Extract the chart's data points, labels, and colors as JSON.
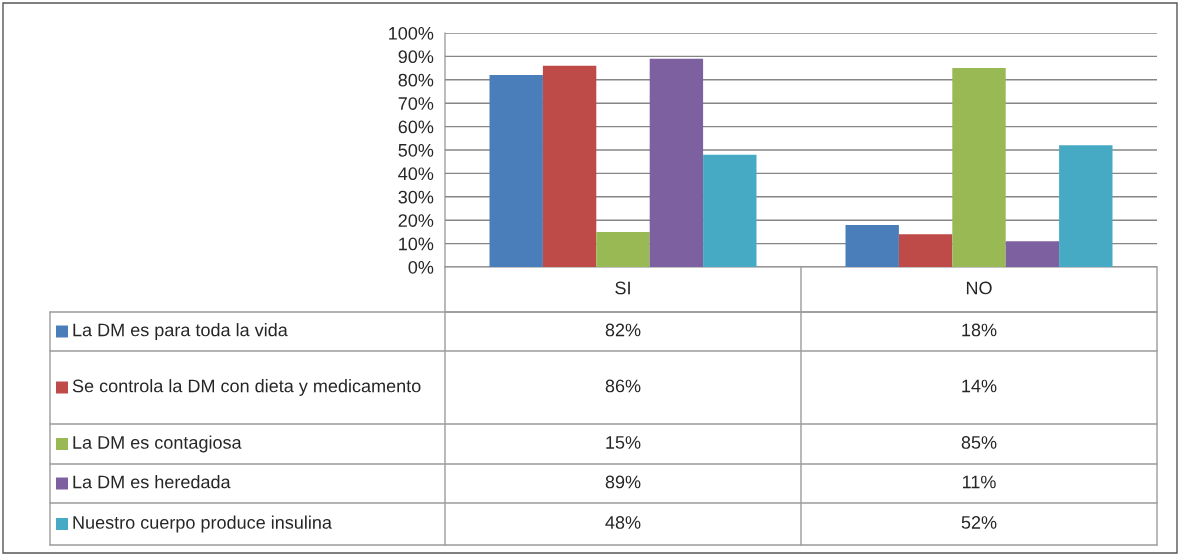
{
  "chart_data": {
    "type": "bar",
    "categories": [
      "SI",
      "NO"
    ],
    "series": [
      {
        "name": "La DM es para toda la vida",
        "color": "#4a7ebb",
        "values": [
          82,
          18
        ],
        "value_labels": [
          "82%",
          "18%"
        ]
      },
      {
        "name": "Se controla la DM con dieta y medicamento",
        "color": "#be4b48",
        "values": [
          86,
          14
        ],
        "value_labels": [
          "86%",
          "14%"
        ]
      },
      {
        "name": "La DM es contagiosa",
        "color": "#98b954",
        "values": [
          15,
          85
        ],
        "value_labels": [
          "15%",
          "85%"
        ]
      },
      {
        "name": "La DM es heredada",
        "color": "#7d60a0",
        "values": [
          89,
          11
        ],
        "value_labels": [
          "89%",
          "11%"
        ]
      },
      {
        "name": "Nuestro cuerpo produce insulina",
        "color": "#46aac5",
        "values": [
          48,
          52
        ],
        "value_labels": [
          "48%",
          "52%"
        ]
      }
    ],
    "ylim": [
      0,
      100
    ],
    "yticks": [
      {
        "value": 0,
        "label": "0%"
      },
      {
        "value": 10,
        "label": "10%"
      },
      {
        "value": 20,
        "label": "20%"
      },
      {
        "value": 30,
        "label": "30%"
      },
      {
        "value": 40,
        "label": "40%"
      },
      {
        "value": 50,
        "label": "50%"
      },
      {
        "value": 60,
        "label": "60%"
      },
      {
        "value": 70,
        "label": "70%"
      },
      {
        "value": 80,
        "label": "80%"
      },
      {
        "value": 90,
        "label": "90%"
      },
      {
        "value": 100,
        "label": "100%"
      }
    ],
    "grid": "y",
    "legend": "bottom"
  }
}
